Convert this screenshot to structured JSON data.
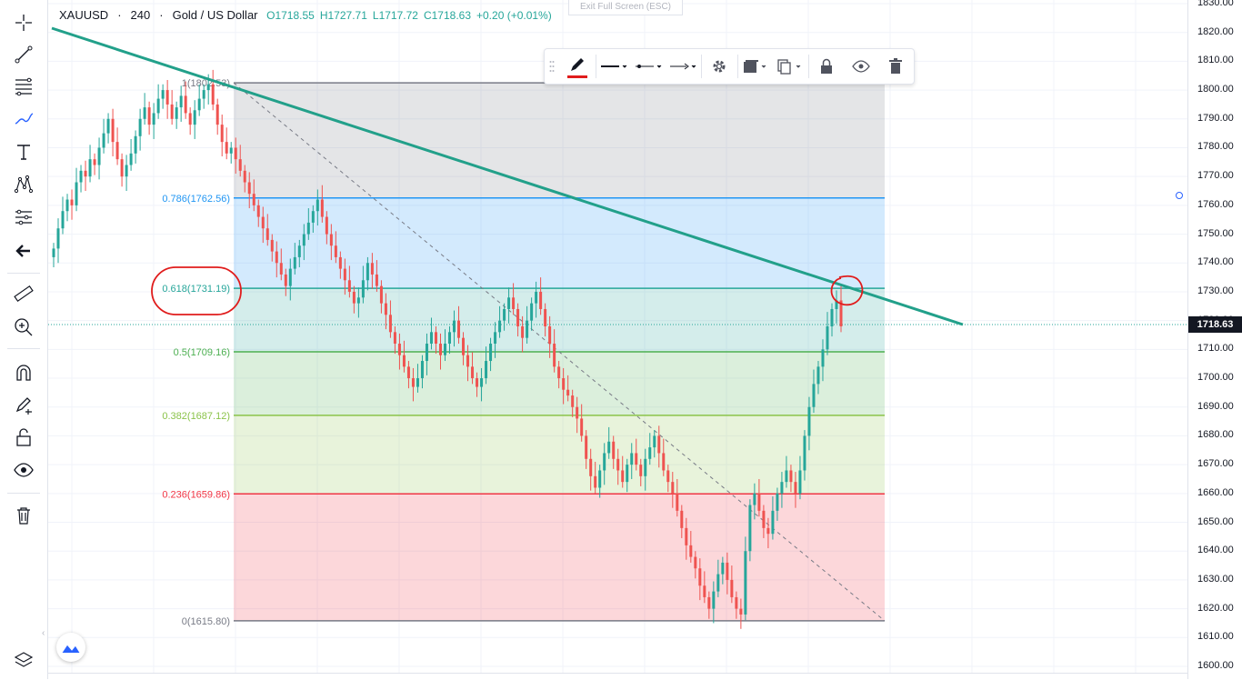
{
  "legend": {
    "symbol": "XAUUSD",
    "interval": "240",
    "description": "Gold / US Dollar",
    "dot": "·",
    "open": "O1718.55",
    "high": "H1727.71",
    "low": "L1717.72",
    "close": "C1718.63",
    "change": "+0.20 (+0.01%)"
  },
  "exit_fullscreen": "Exit Full Screen (ESC)",
  "last_price": "1718.63",
  "price_axis": {
    "ticks": [
      "1830.00",
      "1820.00",
      "1810.00",
      "1800.00",
      "1790.00",
      "1780.00",
      "1770.00",
      "1760.00",
      "1750.00",
      "1740.00",
      "1730.00",
      "1720.00",
      "1710.00",
      "1700.00",
      "1690.00",
      "1680.00",
      "1670.00",
      "1660.00",
      "1650.00",
      "1640.00",
      "1630.00",
      "1620.00",
      "1610.00",
      "1600.00"
    ]
  },
  "fib_levels": [
    {
      "label": "1(1802.53)",
      "price": 1802.53,
      "color": "#787b86"
    },
    {
      "label": "0.786(1762.56)",
      "price": 1762.56,
      "color": "#2196f3"
    },
    {
      "label": "0.618(1731.19)",
      "price": 1731.19,
      "color": "#26a69a"
    },
    {
      "label": "0.5(1709.16)",
      "price": 1709.16,
      "color": "#4caf50"
    },
    {
      "label": "0.382(1687.12)",
      "price": 1687.12,
      "color": "#8bc34a"
    },
    {
      "label": "0.236(1659.86)",
      "price": 1659.86,
      "color": "#f23645"
    },
    {
      "label": "0(1615.80)",
      "price": 1615.8,
      "color": "#787b86"
    }
  ],
  "colors": {
    "up": "#26a69a",
    "down": "#ef5350",
    "trendline": "#22a08a",
    "annotation": "#e01c1c",
    "accent": "#2962ff"
  },
  "toolbar_icons": [
    "crosshair-icon",
    "trend-line-icon",
    "fib-icon",
    "brush-icon",
    "text-icon",
    "pattern-icon",
    "prediction-icon",
    "back-arrow-icon",
    "ruler-icon",
    "zoom-in-icon",
    "magnet-icon",
    "stay-drawing-icon",
    "lock-icon",
    "eye-icon",
    "trash-icon"
  ],
  "float_toolbar_icons": [
    "pencil-icon",
    "line-style-icon",
    "line-width-icon",
    "line-end-icon",
    "gear-icon",
    "background-icon",
    "clone-icon",
    "lock-icon",
    "eye-icon",
    "trash-icon"
  ],
  "chart_data": {
    "type": "candlestick",
    "symbol": "XAUUSD",
    "ylim": [
      1598,
      1831
    ],
    "close": [
      1745,
      1752,
      1758,
      1762,
      1760,
      1768,
      1772,
      1770,
      1776,
      1774,
      1780,
      1785,
      1790,
      1782,
      1776,
      1770,
      1774,
      1778,
      1784,
      1790,
      1794,
      1788,
      1792,
      1797,
      1800,
      1795,
      1790,
      1794,
      1798,
      1792,
      1788,
      1793,
      1797,
      1800,
      1802,
      1795,
      1788,
      1782,
      1778,
      1780,
      1776,
      1772,
      1768,
      1764,
      1760,
      1756,
      1752,
      1748,
      1744,
      1740,
      1736,
      1732,
      1738,
      1742,
      1746,
      1750,
      1754,
      1758,
      1762,
      1756,
      1750,
      1746,
      1742,
      1738,
      1734,
      1730,
      1726,
      1728,
      1734,
      1740,
      1736,
      1732,
      1726,
      1722,
      1716,
      1712,
      1708,
      1704,
      1700,
      1697,
      1700,
      1706,
      1712,
      1716,
      1712,
      1708,
      1712,
      1716,
      1720,
      1714,
      1708,
      1704,
      1700,
      1697,
      1700,
      1706,
      1712,
      1716,
      1720,
      1724,
      1728,
      1724,
      1718,
      1714,
      1720,
      1726,
      1730,
      1724,
      1718,
      1712,
      1704,
      1700,
      1696,
      1694,
      1690,
      1686,
      1680,
      1672,
      1666,
      1662,
      1668,
      1674,
      1678,
      1672,
      1668,
      1664,
      1670,
      1674,
      1670,
      1666,
      1672,
      1676,
      1680,
      1674,
      1668,
      1664,
      1660,
      1654,
      1648,
      1642,
      1638,
      1634,
      1628,
      1624,
      1620,
      1626,
      1632,
      1636,
      1630,
      1624,
      1620,
      1618,
      1640,
      1656,
      1660,
      1654,
      1648,
      1646,
      1654,
      1660,
      1664,
      1668,
      1664,
      1660,
      1668,
      1680,
      1690,
      1698,
      1704,
      1710,
      1718,
      1724,
      1727,
      1718
    ]
  }
}
